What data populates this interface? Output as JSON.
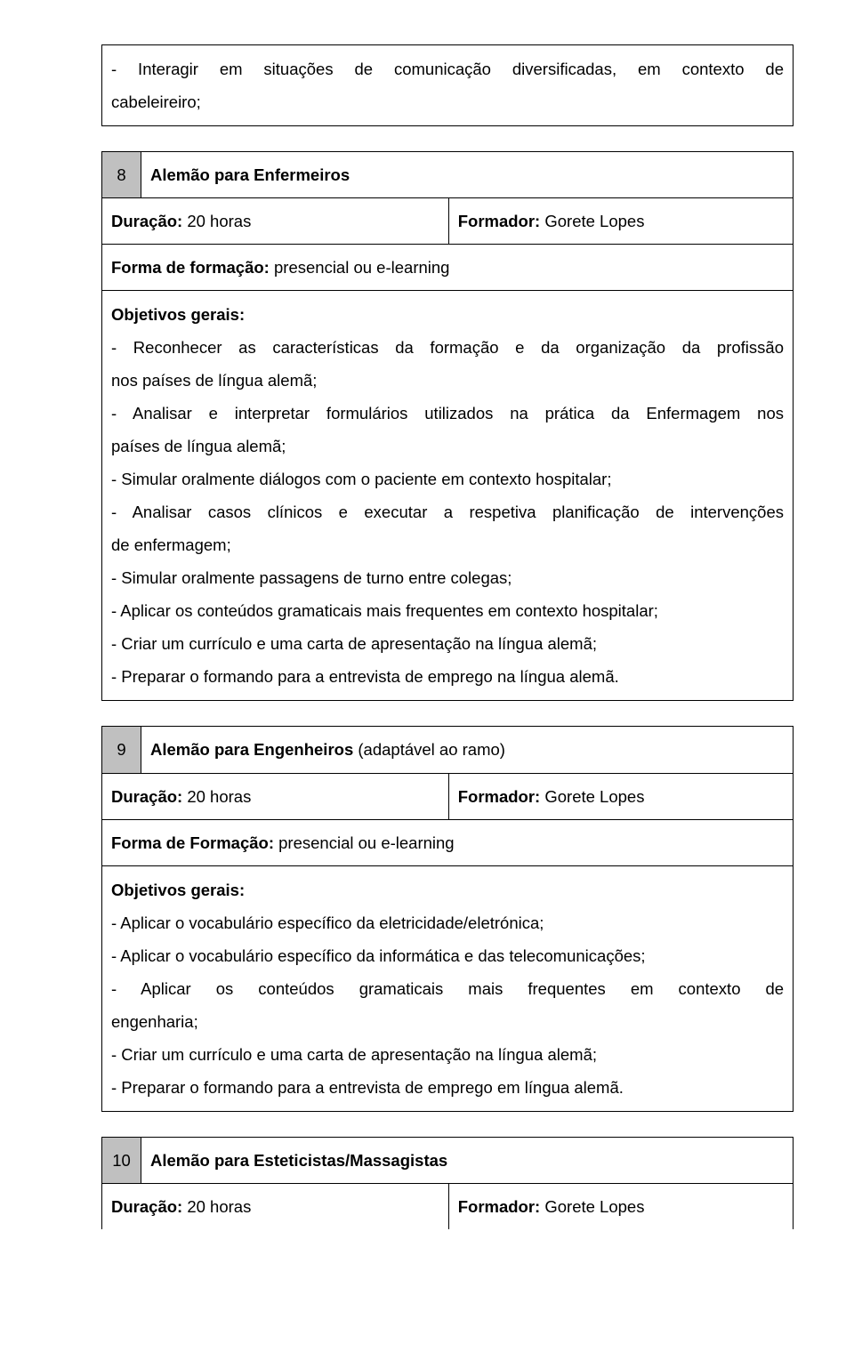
{
  "block1": {
    "line1": "- Interagir em situações de comunicação diversificadas, em contexto de",
    "line2": "cabeleireiro;"
  },
  "block2": {
    "num": "8",
    "title": "Alemão para Enfermeiros",
    "dur_label": "Duração:",
    "dur_val": " 20 horas",
    "form_label": "Formador:",
    "form_val": " Gorete Lopes",
    "format_label": "Forma de formação:",
    "format_val": " presencial ou e-learning",
    "obj_label": "Objetivos gerais:",
    "l1": "- Reconhecer as características da formação e da organização da profissão",
    "l2": "nos países de língua alemã;",
    "l3": "- Analisar e interpretar formulários utilizados na prática da Enfermagem nos",
    "l4": "países de língua alemã;",
    "l5": "- Simular oralmente diálogos com o paciente em contexto hospitalar;",
    "l6": "- Analisar casos clínicos e executar a respetiva planificação de intervenções",
    "l7": "de enfermagem;",
    "l8": "- Simular oralmente passagens de turno entre colegas;",
    "l9": "- Aplicar os conteúdos gramaticais mais frequentes em contexto hospitalar;",
    "l10": "- Criar um currículo e uma carta de apresentação na língua alemã;",
    "l11": "- Preparar o formando para a entrevista de emprego na língua alemã."
  },
  "block3": {
    "num": "9",
    "title": "Alemão para Engenheiros",
    "title_suffix": " (adaptável ao ramo)",
    "dur_label": "Duração:",
    "dur_val": " 20 horas",
    "form_label": "Formador:",
    "form_val": " Gorete Lopes",
    "format_label": "Forma de Formação:",
    "format_val": " presencial ou e-learning",
    "obj_label": "Objetivos gerais:",
    "l1": "- Aplicar o vocabulário específico da eletricidade/eletrónica;",
    "l2": "- Aplicar o vocabulário específico da informática e das telecomunicações;",
    "l3a": "-",
    "l3b": "Aplicar",
    "l3c": "os",
    "l3d": "conteúdos",
    "l3e": "gramaticais",
    "l3f": "mais",
    "l3g": "frequentes",
    "l3h": "em",
    "l3i": "contexto",
    "l3j": "de",
    "l4": "engenharia;",
    "l5": "- Criar um currículo e uma carta de apresentação na língua alemã;",
    "l6": "- Preparar o formando para a entrevista de emprego em língua alemã."
  },
  "block4": {
    "num": "10",
    "title": "Alemão para Esteticistas/Massagistas",
    "dur_label": "Duração:",
    "dur_val": " 20 horas",
    "form_label": "Formador:",
    "form_val": " Gorete Lopes"
  }
}
